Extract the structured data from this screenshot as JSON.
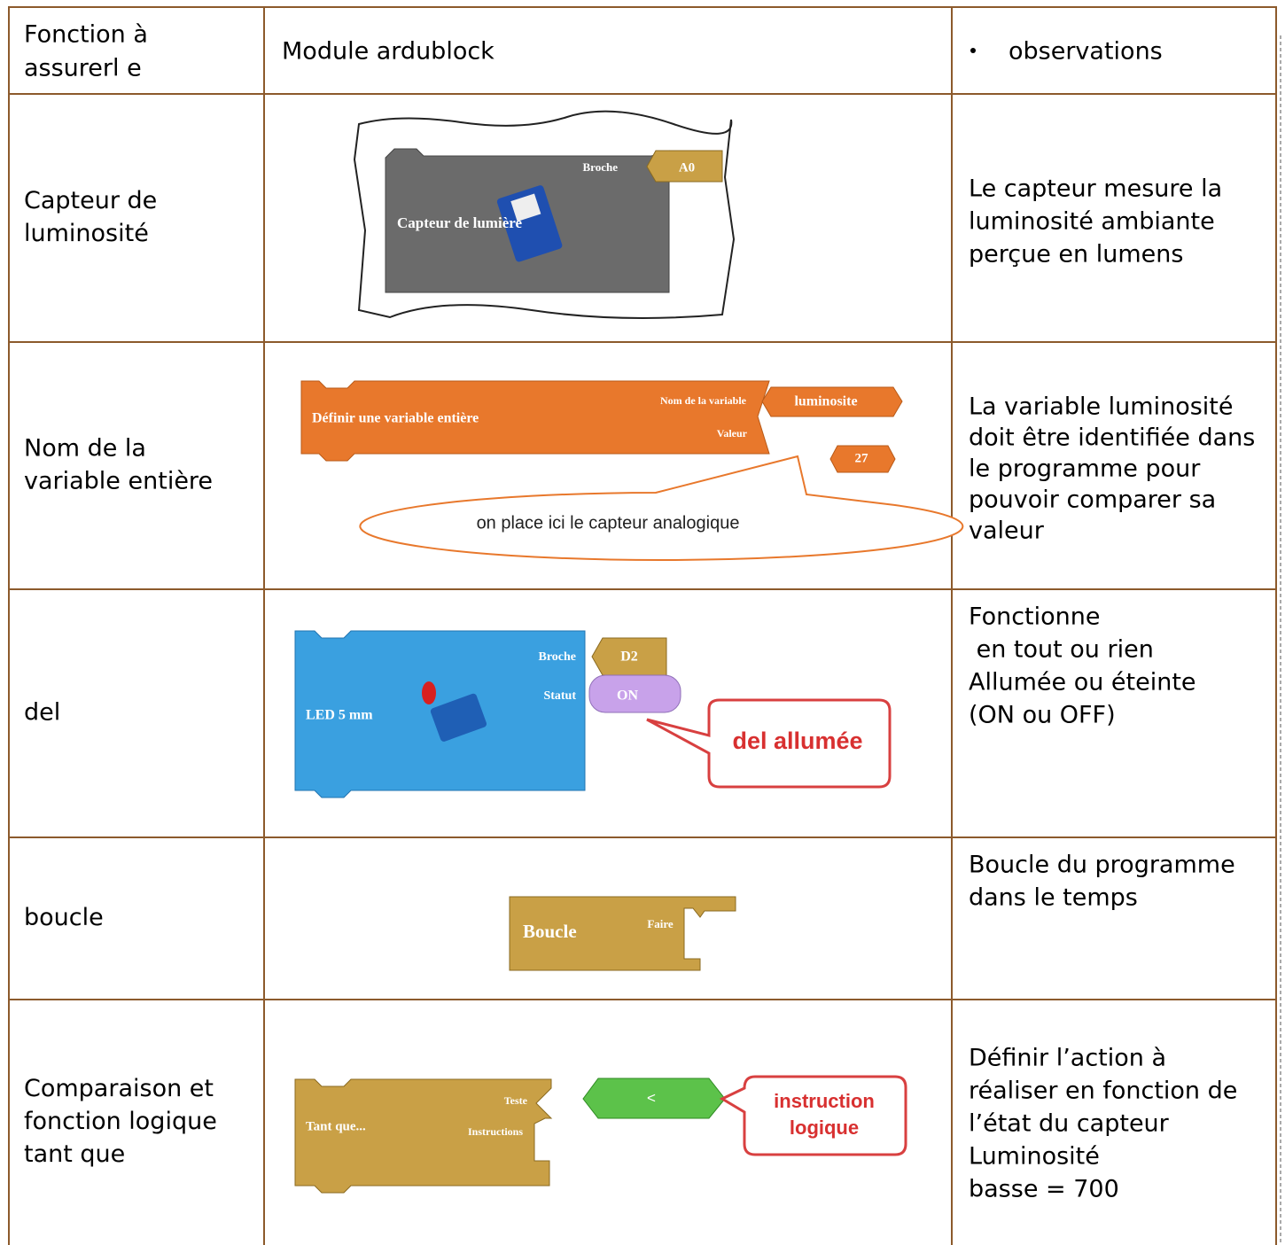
{
  "table": {
    "header": {
      "function": [
        "Fonction à",
        "assurerl e"
      ],
      "module": "Module ardublock",
      "observations": "observations"
    },
    "rows": [
      {
        "function": [
          "Capteur de",
          "luminosité"
        ],
        "module": {
          "pin_label": "Broche",
          "pin": "A0",
          "block": "Capteur de lumière"
        },
        "observations": [
          "Le capteur mesure la",
          "luminosité ambiante",
          "perçue en lumens"
        ]
      },
      {
        "function": [
          "Nom de la",
          "variable entière"
        ],
        "module": {
          "block": "Définir une variable entière",
          "name_label": "Nom de la variable",
          "name": "luminosite",
          "value_label": "Valeur",
          "value": "27",
          "callout": "on place ici le capteur analogique"
        },
        "observations": [
          "La variable luminosité",
          "doit être identifiée dans",
          "le programme pour",
          "pouvoir comparer sa",
          "valeur"
        ]
      },
      {
        "function": [
          "del"
        ],
        "module": {
          "pin_label": "Broche",
          "pin": "D2",
          "status_label": "Statut",
          "status": "ON",
          "block": "LED 5 mm",
          "callout": "del allumée"
        },
        "observations": [
          "Fonctionne",
          " en tout ou rien",
          "Allumée ou éteinte",
          "(ON ou OFF)"
        ]
      },
      {
        "function": [
          "boucle"
        ],
        "module": {
          "block": "Boucle",
          "do_label": "Faire"
        },
        "observations": [
          "Boucle du programme",
          "dans le temps"
        ]
      },
      {
        "function": [
          "Comparaison et",
          "fonction logique",
          "tant que"
        ],
        "module": {
          "block": "Tant que...",
          "test_label": "Teste",
          "instructions_label": "Instructions",
          "operator": "<",
          "callout": [
            "instruction",
            "logique"
          ]
        },
        "observations": [
          "Définir l’action à",
          "réaliser en fonction de",
          "l’état du capteur",
          "Luminosité",
          "basse = 700"
        ]
      }
    ]
  }
}
